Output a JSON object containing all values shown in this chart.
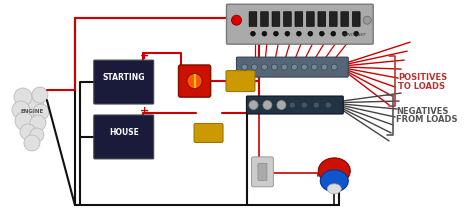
{
  "fig_width": 4.74,
  "fig_height": 2.23,
  "dpi": 100,
  "engine_label": "ENGINE",
  "battery1_label": "STARTING",
  "battery2_label": "HOUSE",
  "positives_label": [
    "POSITIVES",
    "TO LOADS"
  ],
  "negatives_label": [
    "NEGATIVES",
    "FROM LOADS"
  ],
  "red": "#cc0000",
  "black": "#111111",
  "dark_gray": "#333333",
  "bat_color": "#1a1a3a",
  "bat_edge": "#444444",
  "panel_color": "#aaaaaa",
  "panel_edge": "#777777",
  "switch_color": "#cc1100",
  "switch_edge": "#881100",
  "fuse_color": "#cc9900",
  "fuse_edge": "#997700",
  "pos_bus_color": "#556677",
  "pos_bus_edge": "#334455",
  "neg_bus_color": "#223344",
  "neg_bus_edge": "#111122",
  "pump_red": "#cc1100",
  "pump_blue": "#1155cc",
  "pump_white": "#dddddd",
  "bilge_sw_color": "#cccccc",
  "pos_label_color": "#bb3333",
  "neg_label_color": "#555555",
  "engine_face": "#e0e0e0",
  "engine_edge": "#bbbbbb"
}
